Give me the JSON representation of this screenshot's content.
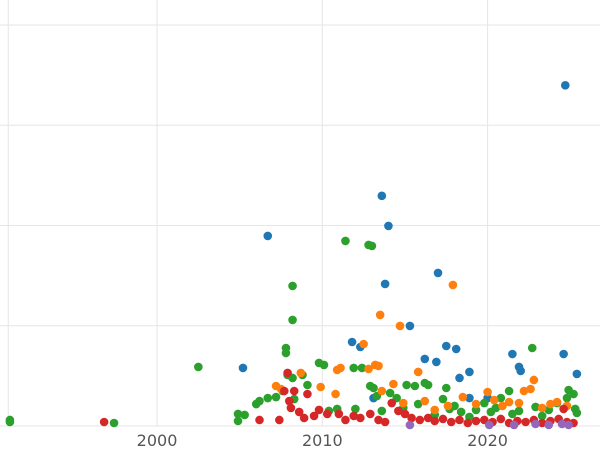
{
  "chart_data": {
    "type": "scatter",
    "title": "",
    "xlabel": "",
    "ylabel": "",
    "xlim": [
      1990.5,
      2026.8
    ],
    "ylim": [
      0,
      400
    ],
    "x_ticks": [
      2000,
      2010,
      2020
    ],
    "x_tick_labels": [
      "2000",
      "2010",
      "2020"
    ],
    "x_grid": [
      1991,
      2000,
      2010,
      2020
    ],
    "y_grid": [
      0,
      100,
      200,
      300,
      400
    ],
    "grid": true,
    "legend": "none",
    "series": [
      {
        "color": "#1f77b4",
        "points": [
          [
            2024.7,
            339.8
          ],
          [
            2013.6,
            229.6
          ],
          [
            2006.7,
            189.6
          ],
          [
            2014.0,
            199.6
          ],
          [
            2017.0,
            152.7
          ],
          [
            2013.8,
            141.7
          ],
          [
            2015.3,
            99.8
          ],
          [
            2011.8,
            83.8
          ],
          [
            2012.3,
            78.8
          ],
          [
            2016.2,
            66.9
          ],
          [
            2017.5,
            79.8
          ],
          [
            2018.1,
            76.8
          ],
          [
            2016.9,
            63.9
          ],
          [
            2018.9,
            53.9
          ],
          [
            2018.3,
            47.9
          ],
          [
            2021.5,
            71.8
          ],
          [
            2021.9,
            58.9
          ],
          [
            2022.0,
            54.9
          ],
          [
            2024.6,
            71.8
          ],
          [
            2025.4,
            51.9
          ],
          [
            2005.2,
            57.9
          ],
          [
            2013.1,
            27.9
          ],
          [
            2018.9,
            27.9
          ],
          [
            2020.0,
            27.9
          ]
        ]
      },
      {
        "color": "#2ca02c",
        "points": [
          [
            1991.1,
            6.0
          ],
          [
            1991.1,
            4.0
          ],
          [
            1997.4,
            3.0
          ],
          [
            2002.5,
            58.9
          ],
          [
            2004.9,
            12.0
          ],
          [
            2005.3,
            11.0
          ],
          [
            2004.9,
            5.0
          ],
          [
            2006.0,
            21.9
          ],
          [
            2006.2,
            24.9
          ],
          [
            2006.7,
            27.9
          ],
          [
            2007.2,
            28.9
          ],
          [
            2007.6,
            34.9
          ],
          [
            2007.8,
            77.8
          ],
          [
            2007.8,
            72.8
          ],
          [
            2007.9,
            50.9
          ],
          [
            2008.2,
            47.9
          ],
          [
            2008.2,
            139.7
          ],
          [
            2008.2,
            105.8
          ],
          [
            2008.3,
            26.9
          ],
          [
            2008.8,
            50.9
          ],
          [
            2009.1,
            40.9
          ],
          [
            2009.8,
            62.9
          ],
          [
            2010.1,
            60.9
          ],
          [
            2010.4,
            15.0
          ],
          [
            2010.9,
            17.0
          ],
          [
            2011.4,
            184.6
          ],
          [
            2011.9,
            57.9
          ],
          [
            2012.0,
            17.0
          ],
          [
            2012.4,
            57.9
          ],
          [
            2012.8,
            180.6
          ],
          [
            2013.0,
            179.6
          ],
          [
            2012.9,
            39.9
          ],
          [
            2013.1,
            37.9
          ],
          [
            2013.3,
            29.9
          ],
          [
            2013.6,
            15.0
          ],
          [
            2014.1,
            32.9
          ],
          [
            2014.5,
            27.9
          ],
          [
            2014.9,
            18.0
          ],
          [
            2015.1,
            40.9
          ],
          [
            2015.6,
            39.9
          ],
          [
            2015.8,
            21.9
          ],
          [
            2016.2,
            42.9
          ],
          [
            2016.4,
            40.9
          ],
          [
            2016.8,
            11.0
          ],
          [
            2017.3,
            26.9
          ],
          [
            2017.5,
            37.9
          ],
          [
            2017.7,
            17.0
          ],
          [
            2018.0,
            20.0
          ],
          [
            2018.4,
            14.0
          ],
          [
            2018.9,
            9.0
          ],
          [
            2019.3,
            16.0
          ],
          [
            2019.8,
            22.9
          ],
          [
            2020.2,
            14.0
          ],
          [
            2020.5,
            18.0
          ],
          [
            2020.8,
            27.9
          ],
          [
            2021.3,
            34.9
          ],
          [
            2021.5,
            12.0
          ],
          [
            2021.9,
            15.0
          ],
          [
            2022.7,
            77.8
          ],
          [
            2022.9,
            19.0
          ],
          [
            2023.3,
            10.0
          ],
          [
            2023.7,
            16.0
          ],
          [
            2024.2,
            22.9
          ],
          [
            2024.8,
            27.9
          ],
          [
            2024.9,
            35.9
          ],
          [
            2025.2,
            31.9
          ],
          [
            2025.3,
            17.0
          ],
          [
            2025.4,
            13.0
          ]
        ]
      },
      {
        "color": "#ff7f0e",
        "points": [
          [
            2007.2,
            39.9
          ],
          [
            2007.5,
            36.9
          ],
          [
            2008.7,
            52.9
          ],
          [
            2009.9,
            38.9
          ],
          [
            2010.8,
            31.9
          ],
          [
            2010.9,
            55.9
          ],
          [
            2011.1,
            57.9
          ],
          [
            2012.5,
            81.8
          ],
          [
            2012.8,
            56.9
          ],
          [
            2013.2,
            60.9
          ],
          [
            2013.4,
            59.9
          ],
          [
            2013.5,
            110.8
          ],
          [
            2013.6,
            34.9
          ],
          [
            2014.3,
            41.9
          ],
          [
            2014.7,
            99.8
          ],
          [
            2014.9,
            22.9
          ],
          [
            2015.8,
            53.9
          ],
          [
            2016.2,
            24.9
          ],
          [
            2016.8,
            16.0
          ],
          [
            2017.6,
            20.0
          ],
          [
            2017.9,
            140.7
          ],
          [
            2018.5,
            28.9
          ],
          [
            2019.3,
            21.9
          ],
          [
            2020.0,
            33.9
          ],
          [
            2020.4,
            25.9
          ],
          [
            2020.9,
            20.0
          ],
          [
            2021.3,
            23.9
          ],
          [
            2021.9,
            22.9
          ],
          [
            2022.2,
            34.9
          ],
          [
            2022.6,
            36.9
          ],
          [
            2022.8,
            45.9
          ],
          [
            2023.3,
            18.0
          ],
          [
            2023.8,
            21.9
          ],
          [
            2024.2,
            23.9
          ],
          [
            2024.8,
            20.0
          ]
        ]
      },
      {
        "color": "#d62728",
        "points": [
          [
            1996.8,
            4.0
          ],
          [
            2006.2,
            6.0
          ],
          [
            2007.4,
            6.0
          ],
          [
            2007.7,
            34.9
          ],
          [
            2007.9,
            52.9
          ],
          [
            2008.0,
            24.9
          ],
          [
            2008.1,
            18.0
          ],
          [
            2008.3,
            34.9
          ],
          [
            2008.6,
            14.0
          ],
          [
            2008.9,
            8.0
          ],
          [
            2009.1,
            31.9
          ],
          [
            2009.5,
            10.0
          ],
          [
            2009.8,
            16.0
          ],
          [
            2010.3,
            12.0
          ],
          [
            2011.0,
            12.0
          ],
          [
            2011.4,
            6.0
          ],
          [
            2011.9,
            10.0
          ],
          [
            2012.3,
            8.0
          ],
          [
            2012.9,
            12.0
          ],
          [
            2013.4,
            6.0
          ],
          [
            2013.8,
            4.0
          ],
          [
            2014.2,
            22.9
          ],
          [
            2014.6,
            15.0
          ],
          [
            2015.0,
            12.0
          ],
          [
            2015.4,
            8.0
          ],
          [
            2015.9,
            6.0
          ],
          [
            2016.4,
            8.0
          ],
          [
            2016.8,
            5.0
          ],
          [
            2017.3,
            7.0
          ],
          [
            2017.8,
            4.0
          ],
          [
            2018.3,
            6.0
          ],
          [
            2018.8,
            3.0
          ],
          [
            2019.3,
            5.0
          ],
          [
            2019.8,
            6.0
          ],
          [
            2020.3,
            4.0
          ],
          [
            2020.8,
            7.0
          ],
          [
            2021.3,
            3.0
          ],
          [
            2021.8,
            5.0
          ],
          [
            2022.3,
            4.0
          ],
          [
            2022.8,
            6.0
          ],
          [
            2023.3,
            3.0
          ],
          [
            2023.8,
            5.0
          ],
          [
            2024.3,
            7.0
          ],
          [
            2024.6,
            17.0
          ],
          [
            2024.8,
            4.0
          ],
          [
            2025.2,
            3.0
          ]
        ]
      },
      {
        "color": "#9467bd",
        "points": [
          [
            2015.3,
            1.0
          ],
          [
            2020.1,
            1.0
          ],
          [
            2021.6,
            1.0
          ],
          [
            2022.9,
            2.0
          ],
          [
            2023.7,
            1.0
          ],
          [
            2024.5,
            2.0
          ],
          [
            2024.9,
            1.0
          ]
        ]
      }
    ]
  }
}
